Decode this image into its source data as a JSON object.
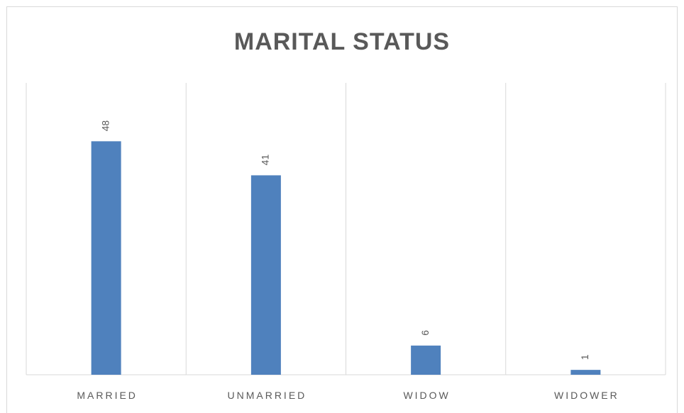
{
  "chart_data": {
    "type": "bar",
    "title": "MARITAL STATUS",
    "categories": [
      "MARRIED",
      "UNMARRIED",
      "WIDOW",
      "WIDOWER"
    ],
    "values": [
      48,
      41,
      6,
      1
    ],
    "color": "#4f81bd",
    "grid": true
  }
}
